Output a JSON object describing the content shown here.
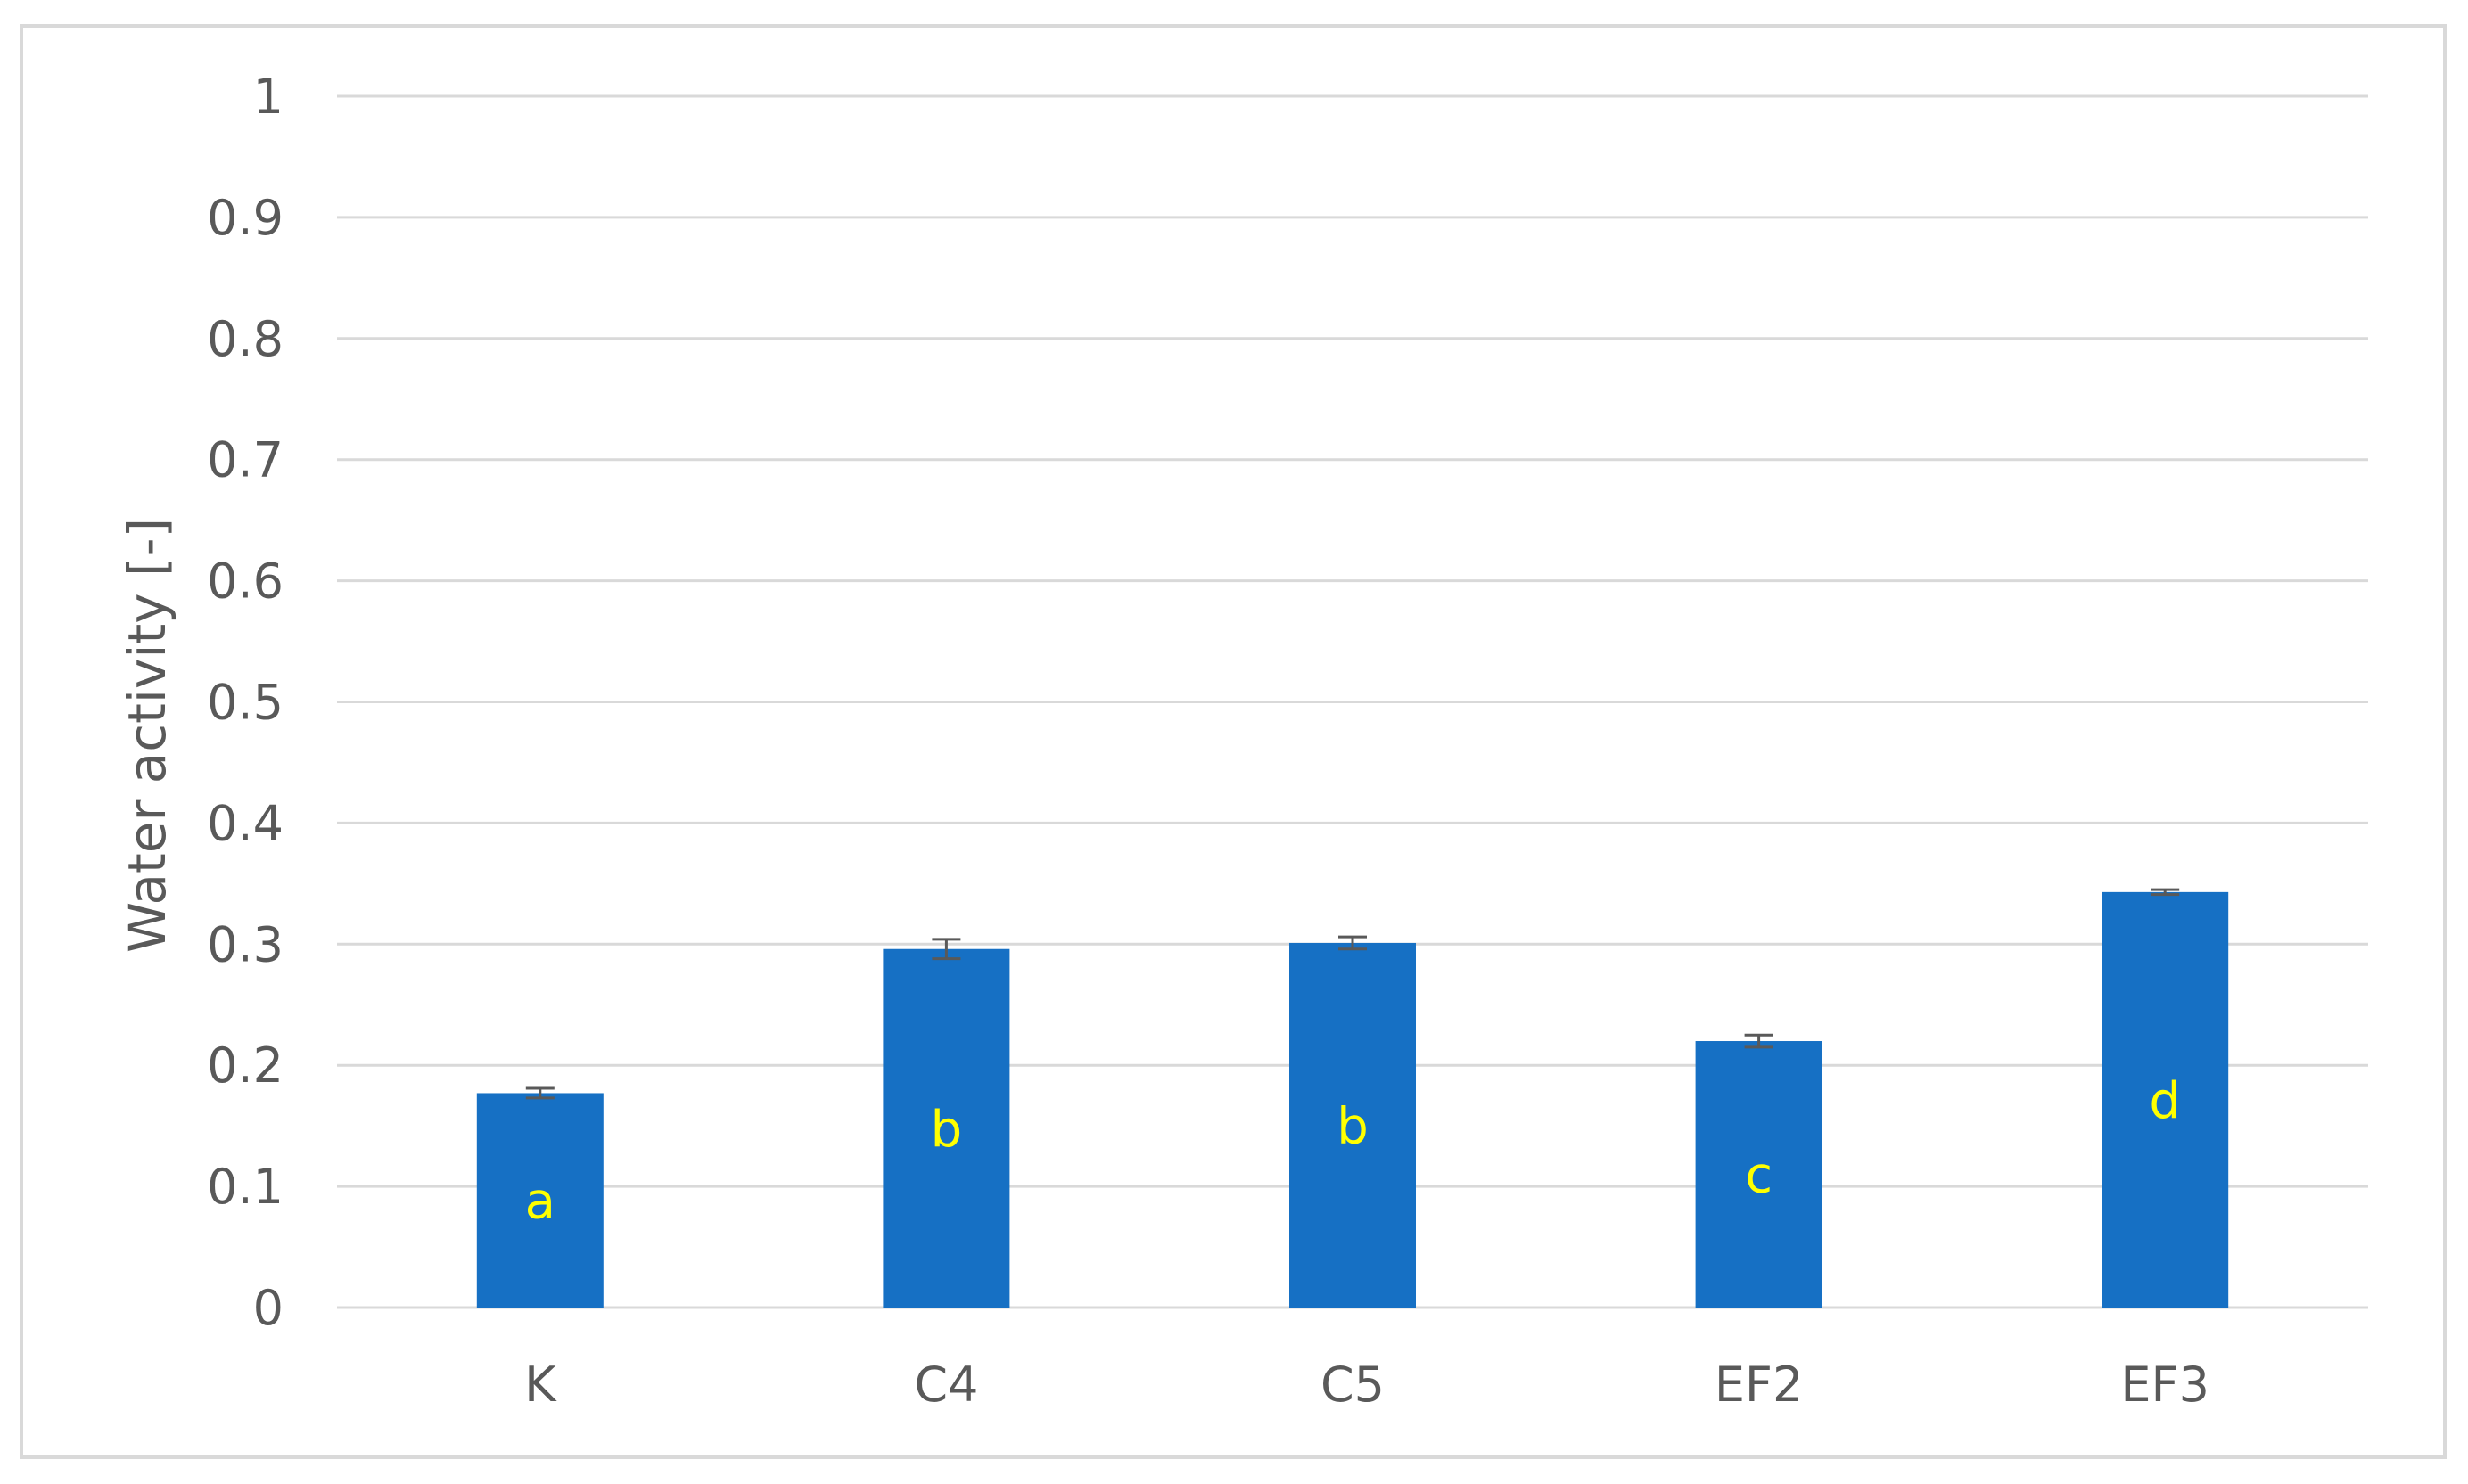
{
  "chart_data": {
    "type": "bar",
    "title": "",
    "xlabel": "",
    "ylabel": "Water activity [-]",
    "ylim": [
      0,
      1
    ],
    "yticks": [
      0,
      0.1,
      0.2,
      0.3,
      0.4,
      0.5,
      0.6,
      0.7,
      0.8,
      0.9,
      1
    ],
    "ytick_labels": [
      "0",
      "0.1",
      "0.2",
      "0.3",
      "0.4",
      "0.5",
      "0.6",
      "0.7",
      "0.8",
      "0.9",
      "1"
    ],
    "grid": true,
    "legend": "none",
    "categories": [
      "K",
      "C4",
      "C5",
      "EF2",
      "EF3"
    ],
    "values": [
      0.177,
      0.296,
      0.301,
      0.22,
      0.343
    ],
    "errors": [
      0.004,
      0.008,
      0.005,
      0.005,
      0.002
    ],
    "bar_labels": [
      "a",
      "b",
      "b",
      "c",
      "d"
    ],
    "colors": {
      "bar": "#1670c4",
      "grid": "#d9d9d9",
      "error_bar": "#595959",
      "bar_label": "#ffff00",
      "text": "#595959"
    }
  }
}
